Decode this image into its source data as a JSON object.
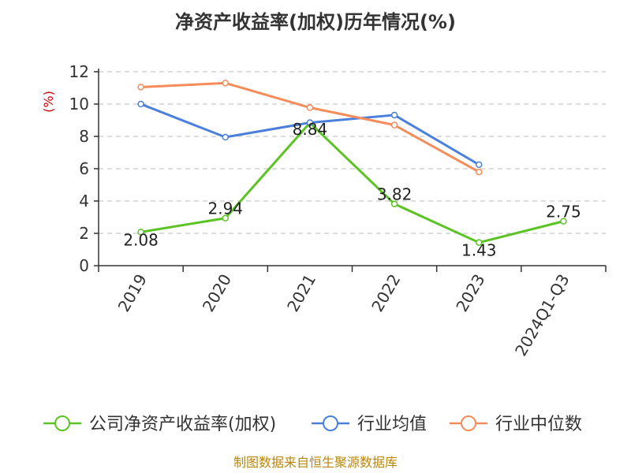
{
  "chart_data": {
    "type": "line",
    "title": "净资产收益率(加权)历年情况(%)",
    "ylabel": "(%)",
    "xlabel": "",
    "categories": [
      "2019",
      "2020",
      "2021",
      "2022",
      "2023",
      "2024Q1-Q3"
    ],
    "ylim": [
      0,
      12
    ],
    "yticks": [
      0,
      2,
      4,
      6,
      8,
      10,
      12
    ],
    "grid": true,
    "legend_position": "bottom",
    "series": [
      {
        "name": "公司净资产收益率(加权)",
        "color": "#5bc424",
        "values": [
          2.08,
          2.94,
          8.84,
          3.82,
          1.43,
          2.75
        ],
        "labels": [
          "2.08",
          "2.94",
          "8.84",
          "3.82",
          "1.43",
          "2.75"
        ]
      },
      {
        "name": "行业均值",
        "color": "#4a7fdc",
        "values": [
          10.0,
          7.95,
          8.85,
          9.32,
          6.25,
          null
        ]
      },
      {
        "name": "行业中位数",
        "color": "#f58c5a",
        "values": [
          11.05,
          11.3,
          9.78,
          8.7,
          5.8,
          null
        ]
      }
    ]
  },
  "source": "制图数据来自恒生聚源数据库"
}
